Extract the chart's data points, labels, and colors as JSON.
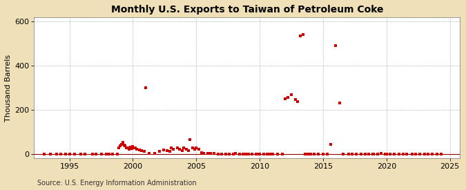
{
  "title": "Monthly U.S. Exports to Taiwan of Petroleum Coke",
  "ylabel": "Thousand Barrels",
  "source": "Source: U.S. Energy Information Administration",
  "fig_background_color": "#f0e0b8",
  "plot_background_color": "#ffffff",
  "scatter_color": "#cc0000",
  "grid_color": "#aaaaaa",
  "xlim": [
    1992.2,
    2025.8
  ],
  "ylim": [
    -18,
    618
  ],
  "yticks": [
    0,
    200,
    400,
    600
  ],
  "xticks": [
    1995,
    2000,
    2005,
    2010,
    2015,
    2020,
    2025
  ],
  "data_points": [
    [
      1993.0,
      0
    ],
    [
      1993.5,
      1
    ],
    [
      1994.0,
      0
    ],
    [
      1994.3,
      1
    ],
    [
      1994.7,
      1
    ],
    [
      1995.0,
      0
    ],
    [
      1995.4,
      1
    ],
    [
      1995.9,
      1
    ],
    [
      1996.2,
      1
    ],
    [
      1996.8,
      1
    ],
    [
      1997.1,
      1
    ],
    [
      1997.5,
      0
    ],
    [
      1997.9,
      1
    ],
    [
      1998.1,
      1
    ],
    [
      1998.4,
      1
    ],
    [
      1998.8,
      1
    ],
    [
      1998.9,
      30
    ],
    [
      1999.0,
      38
    ],
    [
      1999.1,
      45
    ],
    [
      1999.2,
      55
    ],
    [
      1999.3,
      42
    ],
    [
      1999.4,
      38
    ],
    [
      1999.5,
      30
    ],
    [
      1999.6,
      28
    ],
    [
      1999.7,
      22
    ],
    [
      1999.8,
      32
    ],
    [
      1999.9,
      25
    ],
    [
      2000.0,
      35
    ],
    [
      2000.1,
      30
    ],
    [
      2000.2,
      28
    ],
    [
      2000.3,
      22
    ],
    [
      2000.5,
      20
    ],
    [
      2000.7,
      18
    ],
    [
      2000.9,
      12
    ],
    [
      2001.0,
      300
    ],
    [
      2001.3,
      5
    ],
    [
      2001.7,
      3
    ],
    [
      2002.1,
      15
    ],
    [
      2002.4,
      20
    ],
    [
      2002.7,
      18
    ],
    [
      2002.9,
      12
    ],
    [
      2003.0,
      28
    ],
    [
      2003.2,
      22
    ],
    [
      2003.5,
      28
    ],
    [
      2003.7,
      22
    ],
    [
      2003.9,
      18
    ],
    [
      2004.0,
      28
    ],
    [
      2004.2,
      22
    ],
    [
      2004.4,
      18
    ],
    [
      2004.5,
      65
    ],
    [
      2004.7,
      28
    ],
    [
      2004.9,
      22
    ],
    [
      2005.0,
      28
    ],
    [
      2005.2,
      22
    ],
    [
      2005.4,
      8
    ],
    [
      2005.6,
      5
    ],
    [
      2005.9,
      3
    ],
    [
      2006.1,
      3
    ],
    [
      2006.4,
      4
    ],
    [
      2006.7,
      2
    ],
    [
      2007.0,
      2
    ],
    [
      2007.3,
      2
    ],
    [
      2007.6,
      2
    ],
    [
      2007.9,
      2
    ],
    [
      2008.1,
      3
    ],
    [
      2008.4,
      2
    ],
    [
      2008.7,
      2
    ],
    [
      2008.9,
      2
    ],
    [
      2009.1,
      2
    ],
    [
      2009.4,
      2
    ],
    [
      2009.7,
      2
    ],
    [
      2009.9,
      2
    ],
    [
      2010.0,
      2
    ],
    [
      2010.3,
      2
    ],
    [
      2010.6,
      2
    ],
    [
      2010.8,
      2
    ],
    [
      2011.0,
      2
    ],
    [
      2011.4,
      2
    ],
    [
      2011.8,
      2
    ],
    [
      2012.0,
      250
    ],
    [
      2012.2,
      255
    ],
    [
      2012.5,
      268
    ],
    [
      2012.8,
      248
    ],
    [
      2013.0,
      238
    ],
    [
      2013.2,
      535
    ],
    [
      2013.4,
      540
    ],
    [
      2013.6,
      2
    ],
    [
      2013.8,
      2
    ],
    [
      2014.0,
      2
    ],
    [
      2014.3,
      2
    ],
    [
      2014.6,
      2
    ],
    [
      2015.0,
      2
    ],
    [
      2015.3,
      2
    ],
    [
      2015.6,
      45
    ],
    [
      2016.0,
      490
    ],
    [
      2016.3,
      230
    ],
    [
      2016.6,
      2
    ],
    [
      2017.0,
      2
    ],
    [
      2017.3,
      2
    ],
    [
      2017.6,
      2
    ],
    [
      2018.0,
      2
    ],
    [
      2018.3,
      2
    ],
    [
      2018.6,
      2
    ],
    [
      2018.9,
      2
    ],
    [
      2019.0,
      2
    ],
    [
      2019.3,
      2
    ],
    [
      2019.6,
      4
    ],
    [
      2019.9,
      2
    ],
    [
      2020.0,
      2
    ],
    [
      2020.3,
      2
    ],
    [
      2020.6,
      2
    ],
    [
      2021.0,
      2
    ],
    [
      2021.3,
      2
    ],
    [
      2021.6,
      2
    ],
    [
      2022.0,
      2
    ],
    [
      2022.3,
      2
    ],
    [
      2022.6,
      2
    ],
    [
      2023.0,
      2
    ],
    [
      2023.3,
      2
    ],
    [
      2023.6,
      2
    ],
    [
      2024.0,
      2
    ],
    [
      2024.3,
      2
    ]
  ]
}
